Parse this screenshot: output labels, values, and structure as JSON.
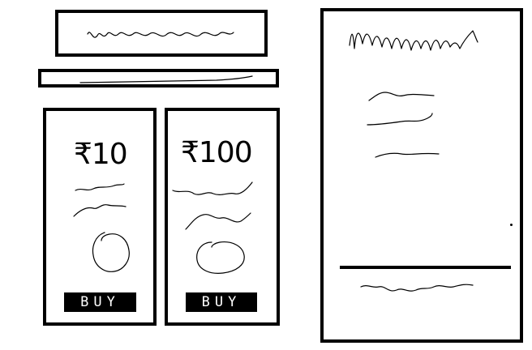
{
  "cards": [
    {
      "price": "₹10",
      "buy_label": "BUY"
    },
    {
      "price": "₹100",
      "buy_label": "BUY"
    }
  ]
}
